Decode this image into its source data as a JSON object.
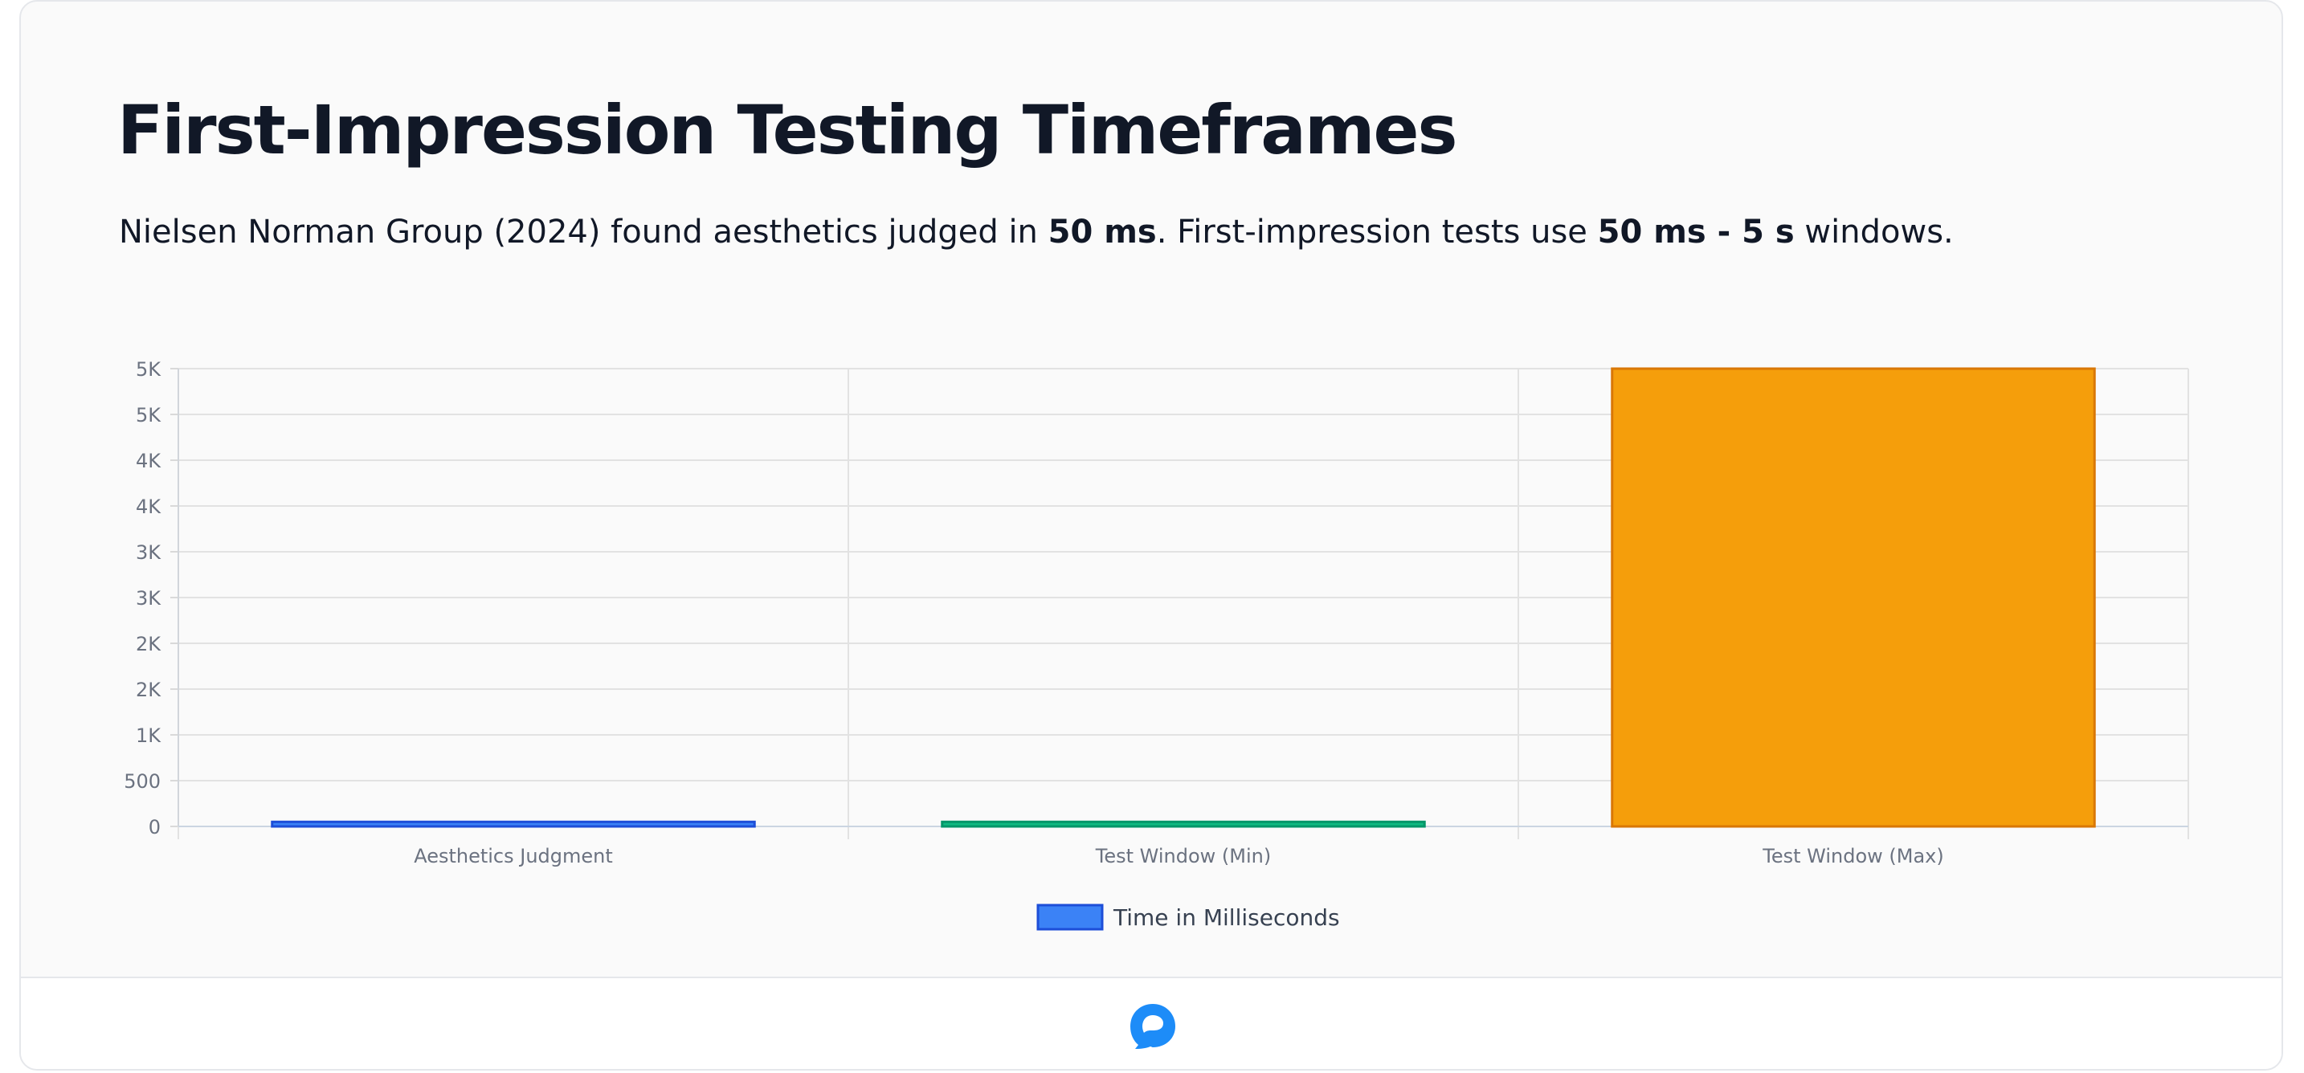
{
  "header": {
    "title": "First-Impression Testing Timeframes",
    "subtitle_part1": "Nielsen Norman Group (2024) found aesthetics judged in ",
    "subtitle_bold1": "50 ms",
    "subtitle_part2": ". First-impression tests use ",
    "subtitle_bold2": "50 ms - 5 s",
    "subtitle_part3": " windows."
  },
  "footer": {
    "logo_icon": "chat-bubble-logo-icon",
    "logo_color": "#1d8cf8"
  },
  "chart_data": {
    "type": "bar",
    "categories": [
      "Aesthetics Judgment",
      "Test Window (Min)",
      "Test Window (Max)"
    ],
    "series": [
      {
        "name": "Time in Milliseconds",
        "values": [
          50,
          50,
          5000
        ],
        "colors": [
          "#3b82f6",
          "#10b981",
          "#f59e0b"
        ],
        "border_colors": [
          "#1d4ed8",
          "#059669",
          "#d97706"
        ]
      }
    ],
    "ylim": [
      0,
      5000
    ],
    "yticks": [
      0,
      500,
      1000,
      1500,
      2000,
      2500,
      3000,
      3500,
      4000,
      4500,
      5000
    ],
    "ytick_labels": [
      "0",
      "500",
      "1K",
      "2K",
      "2K",
      "3K",
      "3K",
      "4K",
      "4K",
      "5K",
      "5K"
    ],
    "legend": {
      "label": "Time in Milliseconds",
      "position": "bottom",
      "color": "#3b82f6",
      "border_color": "#1d4ed8"
    },
    "grid": true,
    "xlabel": "",
    "ylabel": ""
  }
}
